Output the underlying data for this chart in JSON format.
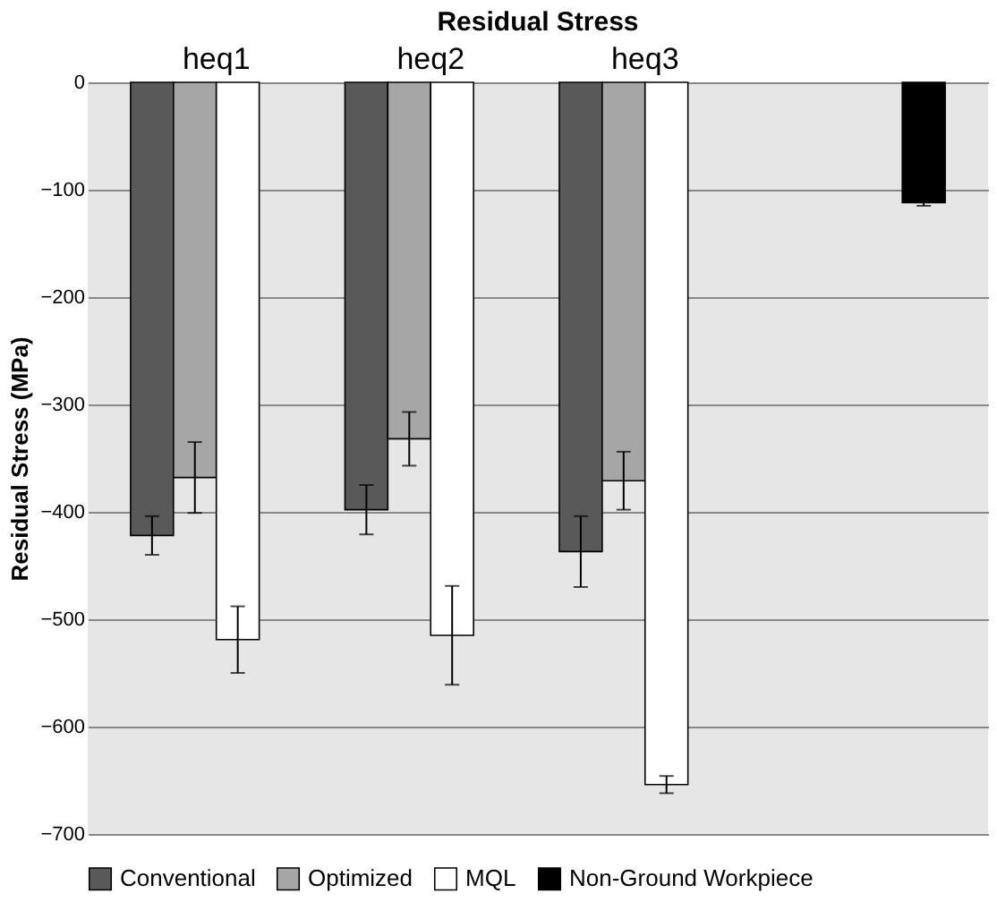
{
  "chart_data": {
    "type": "bar",
    "title": "Residual Stress",
    "ylabel": "Residual Stress (MPa)",
    "categories": [
      "heq1",
      "heq2",
      "heq3",
      null
    ],
    "series": [
      {
        "name": "Conventional",
        "color": "#595959",
        "values": [
          -422,
          -398,
          -437,
          null
        ],
        "errors": [
          18,
          23,
          33,
          null
        ]
      },
      {
        "name": "Optimized",
        "color": "#a6a6a6",
        "values": [
          -368,
          -332,
          -371,
          null
        ],
        "errors": [
          33,
          25,
          27,
          null
        ]
      },
      {
        "name": "MQL",
        "color": "#ffffff",
        "values": [
          -519,
          -515,
          -654,
          null
        ],
        "errors": [
          31,
          46,
          8,
          null
        ]
      },
      {
        "name": "Non-Ground Workpiece",
        "color": "#000000",
        "values": [
          null,
          null,
          null,
          -112
        ],
        "errors": [
          null,
          null,
          null,
          3
        ]
      }
    ],
    "ylim": [
      -700,
      0
    ],
    "yticks": [
      -700,
      -600,
      -500,
      -400,
      -300,
      -200,
      -100,
      0
    ],
    "grid": "y",
    "legend": "bottom"
  }
}
